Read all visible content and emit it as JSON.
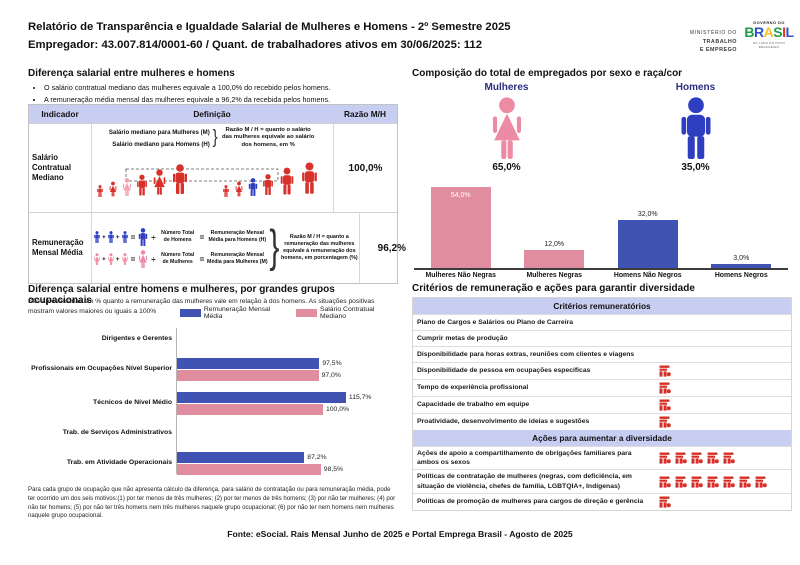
{
  "colors": {
    "blue_bar": "#4053b2",
    "pink_bar": "#e08da0",
    "man_blue": "#2e3ec1",
    "woman_pink": "#ee8ba4",
    "marker_red": "#d43027",
    "band_blue": "#c8cdf2",
    "label_navy": "#2b2d7e"
  },
  "header": {
    "title_line1": "Relatório de Transparência e Igualdade Salarial de Mulheres e Homens - 2º Semestre 2025",
    "title_line2": "Empregador: 43.007.814/0001-60 / Quant. de trabalhadores ativos em 30/06/2025: 112",
    "ministry_logo": {
      "line1": "MINISTÉRIO DO",
      "line2": "TRABALHO",
      "line3": "E EMPREGO"
    },
    "gov_logo": {
      "top": "GOVERNO DO",
      "letters": [
        "B",
        "R",
        "A",
        "S",
        "I",
        "L"
      ],
      "letter_colors": [
        "#1f9e4b",
        "#2d53c6",
        "#f5c41d",
        "#1f9e4b",
        "#e23227",
        "#2d53c6"
      ],
      "tagline": "DO LADO DO POVO BRASILEIRO"
    }
  },
  "salary_diff": {
    "title": "Diferença salarial entre mulheres e homens",
    "bullets": [
      "O salário contratual mediano das mulheres equivale a 100,0% do recebido pelos homens.",
      "A remuneração média mensal das mulheres equivale a 96,2% da recebida pelos homens."
    ],
    "table": {
      "headers": [
        "Indicador",
        "Definição",
        "Razão M/H"
      ],
      "row1": {
        "indicator": "Salário Contratual Mediano",
        "line_women": "Salário mediano para Mulheres (M)",
        "line_men": "Salário mediano para Homens (H)",
        "note": "Razão M / H = quanto o salário das mulheres equivale ao salário dos homens, em %",
        "ratio": "100,0%"
      },
      "row2": {
        "indicator": "Remuneração Mensal Média",
        "operators": {
          "plus": "+",
          "equals": "=",
          "divide": "÷"
        },
        "men": {
          "divide_label": "Número Total de Homens",
          "result_label": "Remuneração Mensal Média para Homens (H)"
        },
        "women": {
          "divide_label": "Número Total de Mulheres",
          "result_label": "Remuneração Mensal Média para Mulheres (M)"
        },
        "note": "Razão M / H = quanto a remuneração das mulheres equivale à remuneração dos homens, em porcentagem (%)",
        "ratio": "96,2%"
      }
    }
  },
  "composition": {
    "title": "Composição do total de empregados por sexo e raça/cor",
    "women_label": "Mulheres",
    "women_pct": "65,0%",
    "men_label": "Homens",
    "men_pct": "35,0%",
    "chart": [
      {
        "label": "Mulheres Não Negras",
        "value": 54.0,
        "value_label": "54,0%",
        "color": "pink",
        "label_inside": true
      },
      {
        "label": "Mulheres Negras",
        "value": 12.0,
        "value_label": "12,0%",
        "color": "pink",
        "label_inside": false
      },
      {
        "label": "Homens Não Negros",
        "value": 32.0,
        "value_label": "32,0%",
        "color": "blue",
        "label_inside": false
      },
      {
        "label": "Homens Negros",
        "value": 3.0,
        "value_label": "3,0%",
        "color": "blue",
        "label_inside": false
      }
    ]
  },
  "occupational": {
    "title": "Diferença salarial entre homens e mulheres, por grandes grupos ocupacionais",
    "subtitle": "São apresentadas em % quanto a remuneração das mulheres vale em relação à dos homens. As situações positivas mostram valores maiores ou iguais a 100%",
    "legend": [
      {
        "label": "Remuneração Mensal Média",
        "color": "#4053b2"
      },
      {
        "label": "Salário Contratual Mediano",
        "color": "#e08da0"
      }
    ],
    "groups": [
      {
        "label": "Dirigentes e Gerentes",
        "rmm": null,
        "rmm_label": null,
        "scm": null,
        "scm_label": null
      },
      {
        "label": "Profissionais em Ocupações Nível Superior",
        "rmm": 97.5,
        "rmm_label": "97,5%",
        "scm": 97.0,
        "scm_label": "97,0%"
      },
      {
        "label": "Técnicos de Nível Médio",
        "rmm": 115.7,
        "rmm_label": "115,7%",
        "scm": 100.0,
        "scm_label": "100,0%"
      },
      {
        "label": "Trab. de Serviços Administrativos",
        "rmm": null,
        "rmm_label": null,
        "scm": null,
        "scm_label": null
      },
      {
        "label": "Trab. em Atividade Operacionais",
        "rmm": 87.2,
        "rmm_label": "87,2%",
        "scm": 98.5,
        "scm_label": "98,5%"
      }
    ],
    "footnote": "Para cada grupo de ocupação que não apresenta cálculo da diferença, para salário de contratação ou para remuneração média, pode ter ocorrido um dos seis motivos:(1) por ter menos de três mulheres; (2) por ter menos de três homens; (3) por não ter mulheres; (4) por não ter homens; (5) por não ter três homens nem três mulheres naquele grupo ocupacional; (6) por não ter nem homens nem mulheres naquele grupo ocupacional."
  },
  "criteria": {
    "title": "Critérios de remuneração e ações para garantir diversidade",
    "remuneration_header": "Critérios remuneratórios",
    "remuneration_rows": [
      {
        "label": "Plano de Cargos e Salários ou Plano de Carreira",
        "count": 0
      },
      {
        "label": "Cumprir metas de produção",
        "count": 0
      },
      {
        "label": "Disponibilidade para horas extras, reuniões com clientes e viagens",
        "count": 0
      },
      {
        "label": "Disponibilidade de pessoa em ocupações específicas",
        "count": 1
      },
      {
        "label": "Tempo de experiência profissional",
        "count": 1
      },
      {
        "label": "Capacidade de trabalho em equipe",
        "count": 1
      },
      {
        "label": "Proatividade, desenvolvimento de ideias e sugestões",
        "count": 1
      }
    ],
    "actions_header": "Ações para aumentar a diversidade",
    "actions_rows": [
      {
        "label": "Ações de apoio a compartilhamento de obrigações familiares para ambos os sexos",
        "count": 5
      },
      {
        "label": "Políticas de contratação de mulheres (negras, com deficiência, em situação de violência, chefes de família, LGBTQIA+, Indígenas)",
        "count": 7
      },
      {
        "label": "Políticas de promoção de mulheres para cargos de direção e gerência",
        "count": 1
      }
    ]
  },
  "footer": "Fonte: eSocial. Rais Mensal Junho de 2025 e Portal Emprega Brasil - Agosto de 2025",
  "chart_data": [
    {
      "type": "bar",
      "title": "Composição do total de empregados por sexo e raça/cor",
      "categories": [
        "Mulheres Não Negras",
        "Mulheres Negras",
        "Homens Não Negros",
        "Homens Negros"
      ],
      "values": [
        54.0,
        12.0,
        32.0,
        3.0
      ],
      "unit": "%",
      "ylim": [
        0,
        60
      ],
      "grid": false,
      "bar_colors": [
        "#e08da0",
        "#e08da0",
        "#4053b2",
        "#4053b2"
      ],
      "annotations": {
        "Mulheres": 65.0,
        "Homens": 35.0
      }
    },
    {
      "type": "bar",
      "orientation": "horizontal",
      "title": "Diferença salarial entre homens e mulheres, por grandes grupos ocupacionais",
      "categories": [
        "Dirigentes e Gerentes",
        "Profissionais em Ocupações Nível Superior",
        "Técnicos de Nível Médio",
        "Trab. de Serviços Administrativos",
        "Trab. em Atividade Operacionais"
      ],
      "series": [
        {
          "name": "Remuneração Mensal Média",
          "color": "#4053b2",
          "values": [
            null,
            97.5,
            115.7,
            null,
            87.2
          ]
        },
        {
          "name": "Salário Contratual Mediano",
          "color": "#e08da0",
          "values": [
            null,
            97.0,
            100.0,
            null,
            98.5
          ]
        }
      ],
      "unit": "%",
      "xlim": [
        0,
        120
      ],
      "grid": false,
      "legend_position": "top-right"
    }
  ]
}
